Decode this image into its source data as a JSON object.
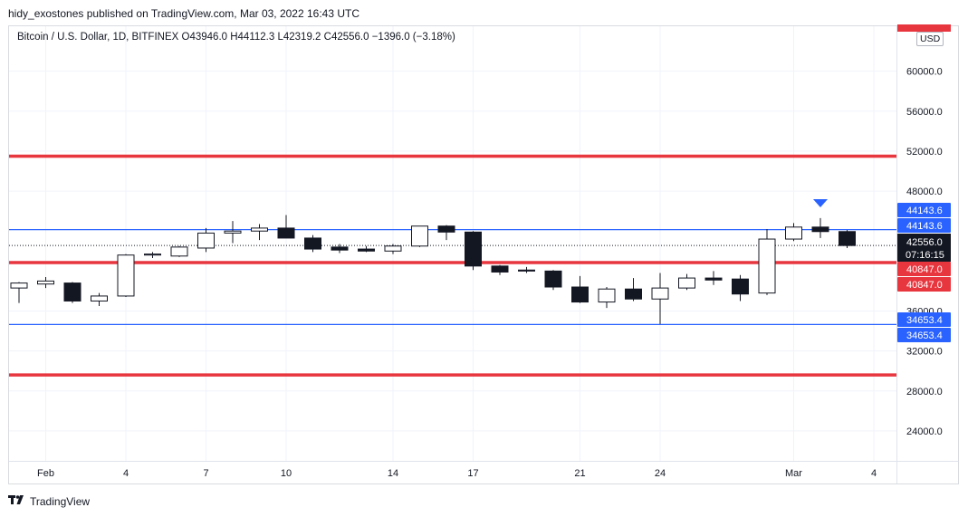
{
  "header": {
    "published_by": "hidy_exostones published on TradingView.com, Mar 03, 2022 16:43 UTC"
  },
  "legend": {
    "symbol": "Bitcoin / U.S. Dollar, 1D, BITFINEX",
    "open": "O43946.0",
    "high": "H44112.3",
    "low": "L42319.2",
    "close": "C42556.0",
    "change": "−1396.0 (−3.18%)"
  },
  "currency": "USD",
  "brand": {
    "name": "TradingView"
  },
  "colors": {
    "up_fill": "#ffffff",
    "down_fill": "#131722",
    "red_line": "#e8363f",
    "blue_line": "#2962ff",
    "current_price_bg": "#131722"
  },
  "chart_data": {
    "type": "candlestick",
    "y_ticks": [
      "60000.0",
      "56000.0",
      "52000.0",
      "48000.0",
      "36000.0",
      "32000.0",
      "28000.0",
      "24000.0"
    ],
    "y_tick_values": [
      60000,
      56000,
      52000,
      48000,
      36000,
      32000,
      28000,
      24000
    ],
    "ylim": [
      21000,
      64500
    ],
    "x_ticks": [
      {
        "label": "Feb",
        "index": 1
      },
      {
        "label": "4",
        "index": 4
      },
      {
        "label": "7",
        "index": 7
      },
      {
        "label": "10",
        "index": 10
      },
      {
        "label": "14",
        "index": 14
      },
      {
        "label": "17",
        "index": 17
      },
      {
        "label": "21",
        "index": 21
      },
      {
        "label": "24",
        "index": 24
      },
      {
        "label": "Mar",
        "index": 29
      },
      {
        "label": "4",
        "index": 32
      }
    ],
    "candles": [
      {
        "o": 38300,
        "h": 38900,
        "l": 36800,
        "c": 38800
      },
      {
        "o": 38700,
        "h": 39400,
        "l": 38300,
        "c": 39000
      },
      {
        "o": 38800,
        "h": 38900,
        "l": 36800,
        "c": 37000
      },
      {
        "o": 37000,
        "h": 37800,
        "l": 36500,
        "c": 37500
      },
      {
        "o": 37500,
        "h": 41700,
        "l": 37400,
        "c": 41600
      },
      {
        "o": 41600,
        "h": 41900,
        "l": 41300,
        "c": 41700
      },
      {
        "o": 41500,
        "h": 42500,
        "l": 41400,
        "c": 42400
      },
      {
        "o": 42300,
        "h": 44300,
        "l": 41900,
        "c": 43800
      },
      {
        "o": 43800,
        "h": 45000,
        "l": 42800,
        "c": 44000
      },
      {
        "o": 44000,
        "h": 44700,
        "l": 43100,
        "c": 44300
      },
      {
        "o": 44300,
        "h": 45600,
        "l": 43300,
        "c": 43300
      },
      {
        "o": 43300,
        "h": 43600,
        "l": 41900,
        "c": 42200
      },
      {
        "o": 42400,
        "h": 42700,
        "l": 41800,
        "c": 42100
      },
      {
        "o": 42200,
        "h": 42500,
        "l": 41900,
        "c": 42000
      },
      {
        "o": 42000,
        "h": 42700,
        "l": 41700,
        "c": 42500
      },
      {
        "o": 42500,
        "h": 44500,
        "l": 42400,
        "c": 44500
      },
      {
        "o": 44500,
        "h": 44600,
        "l": 43100,
        "c": 43900
      },
      {
        "o": 43900,
        "h": 44000,
        "l": 40100,
        "c": 40500
      },
      {
        "o": 40500,
        "h": 40600,
        "l": 39600,
        "c": 39900
      },
      {
        "o": 40100,
        "h": 40400,
        "l": 39800,
        "c": 40000
      },
      {
        "o": 40000,
        "h": 40100,
        "l": 38100,
        "c": 38400
      },
      {
        "o": 38400,
        "h": 39500,
        "l": 36800,
        "c": 36900
      },
      {
        "o": 36900,
        "h": 38400,
        "l": 36300,
        "c": 38200
      },
      {
        "o": 38200,
        "h": 39300,
        "l": 37000,
        "c": 37200
      },
      {
        "o": 37200,
        "h": 39800,
        "l": 34700,
        "c": 38300
      },
      {
        "o": 38300,
        "h": 39700,
        "l": 38100,
        "c": 39300
      },
      {
        "o": 39300,
        "h": 40000,
        "l": 38600,
        "c": 39100
      },
      {
        "o": 39200,
        "h": 39600,
        "l": 37000,
        "c": 37700
      },
      {
        "o": 37800,
        "h": 44200,
        "l": 37600,
        "c": 43200
      },
      {
        "o": 43200,
        "h": 44800,
        "l": 43000,
        "c": 44400
      },
      {
        "o": 44400,
        "h": 45300,
        "l": 43300,
        "c": 43950
      },
      {
        "o": 43950,
        "h": 44100,
        "l": 42300,
        "c": 42556
      }
    ],
    "horizontal_lines": [
      {
        "value": 51500,
        "color": "#e8363f",
        "width": 3.5
      },
      {
        "value": 44143.6,
        "color": "#2962ff",
        "width": 1.2
      },
      {
        "value": 40847.0,
        "color": "#e8363f",
        "width": 3.5
      },
      {
        "value": 34653.4,
        "color": "#2962ff",
        "width": 1.2
      },
      {
        "value": 29600,
        "color": "#e8363f",
        "width": 3.5
      }
    ],
    "current_price": {
      "value": 42556.0,
      "label": "42556.0",
      "countdown": "07:16:15"
    },
    "price_tags": [
      {
        "label": "44143.6",
        "value": 44143.6,
        "color": "#2962ff"
      },
      {
        "label": "44143.6",
        "value": 44143.6,
        "color": "#2962ff"
      },
      {
        "label": "40847.0",
        "value": 40847.0,
        "color": "#e8363f"
      },
      {
        "label": "40847.0",
        "value": 40847.0,
        "color": "#e8363f"
      },
      {
        "label": "34653.4",
        "value": 34653.4,
        "color": "#2962ff"
      },
      {
        "label": "34653.4",
        "value": 34653.4,
        "color": "#2962ff"
      }
    ],
    "marker": {
      "type": "triangle-down",
      "index": 30,
      "color": "#2962ff"
    }
  }
}
